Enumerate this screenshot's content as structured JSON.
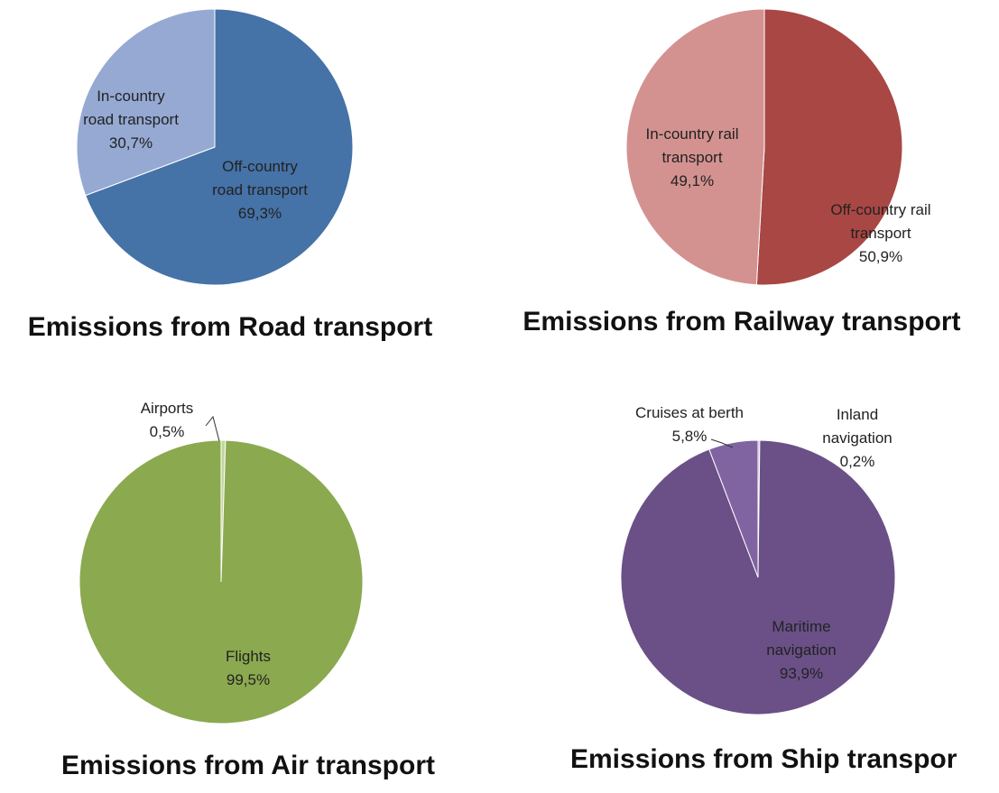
{
  "chart_data": [
    {
      "type": "pie",
      "title": "Emissions from Road transport",
      "categories": [
        "Off-country road transport",
        "In-country road transport"
      ],
      "values": [
        69.3,
        30.7
      ],
      "value_labels": [
        "69,3%",
        "30,7%"
      ],
      "colors": [
        "#4572a7",
        "#95a9d2"
      ]
    },
    {
      "type": "pie",
      "title": "Emissions from Railway transport",
      "categories": [
        "Off-country rail transport",
        "In-country rail transport"
      ],
      "values": [
        50.9,
        49.1
      ],
      "value_labels": [
        "50,9%",
        "49,1%"
      ],
      "colors": [
        "#a94744",
        "#d39290"
      ]
    },
    {
      "type": "pie",
      "title": "Emissions from Air transport",
      "categories": [
        "Airports",
        "Flights"
      ],
      "values": [
        0.5,
        99.5
      ],
      "value_labels": [
        "0,5%",
        "99,5%"
      ],
      "colors": [
        "#c3d69b",
        "#8ba94f"
      ]
    },
    {
      "type": "pie",
      "title": "Emissions from Ship transpor",
      "categories": [
        "Inland navigation",
        "Maritime navigation",
        "Cruises at berth"
      ],
      "values": [
        0.2,
        93.9,
        5.8
      ],
      "value_labels": [
        "0,2%",
        "93,9%",
        "5,8%"
      ],
      "colors": [
        "#b3a2c7",
        "#6a5087",
        "#8064a2"
      ]
    }
  ]
}
